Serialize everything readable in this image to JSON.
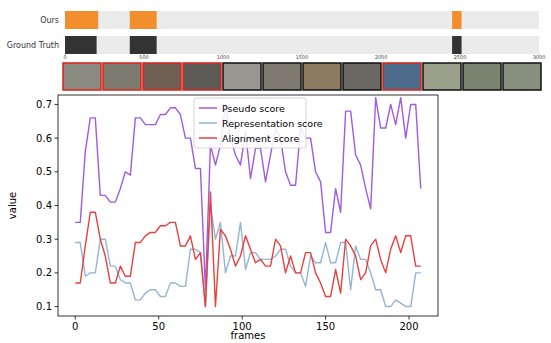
{
  "chart_data": [
    {
      "type": "timeline",
      "categories": [
        "Ours",
        "Ground Truth"
      ],
      "series": [
        {
          "color": "#f28e2b",
          "segments": [
            [
              0,
              210
            ],
            [
              410,
              580
            ],
            [
              2450,
              2510
            ]
          ]
        },
        {
          "color": "#333333",
          "segments": [
            [
              0,
              200
            ],
            [
              410,
              580
            ],
            [
              2450,
              2510
            ]
          ]
        }
      ],
      "xlim": [
        0,
        3000
      ],
      "xticks": [
        0,
        500,
        1000,
        1500,
        2000,
        2500,
        3000
      ]
    },
    {
      "type": "line",
      "xlabel": "frames",
      "ylabel": "value",
      "x": [
        0,
        3,
        6,
        9,
        12,
        15,
        18,
        21,
        24,
        27,
        30,
        33,
        36,
        39,
        42,
        45,
        48,
        51,
        54,
        57,
        60,
        63,
        66,
        69,
        72,
        75,
        78,
        81,
        84,
        87,
        90,
        93,
        96,
        99,
        102,
        105,
        108,
        111,
        114,
        117,
        120,
        123,
        126,
        129,
        132,
        135,
        138,
        141,
        144,
        147,
        150,
        153,
        156,
        159,
        162,
        165,
        168,
        171,
        174,
        177,
        180,
        183,
        186,
        189,
        192,
        195,
        198,
        201,
        204,
        207
      ],
      "series": [
        {
          "name": "Pseudo score",
          "color": "#a05be0",
          "values": [
            0.35,
            0.35,
            0.56,
            0.66,
            0.66,
            0.43,
            0.43,
            0.41,
            0.41,
            0.45,
            0.5,
            0.49,
            0.66,
            0.66,
            0.64,
            0.64,
            0.64,
            0.67,
            0.67,
            0.69,
            0.69,
            0.67,
            0.6,
            0.6,
            0.51,
            0.51,
            0.15,
            0.58,
            0.52,
            0.58,
            0.7,
            0.6,
            0.55,
            0.52,
            0.62,
            0.48,
            0.57,
            0.57,
            0.47,
            0.55,
            0.63,
            0.6,
            0.5,
            0.46,
            0.46,
            0.63,
            0.6,
            0.6,
            0.5,
            0.47,
            0.32,
            0.32,
            0.45,
            0.38,
            0.68,
            0.68,
            0.55,
            0.52,
            0.45,
            0.39,
            0.72,
            0.63,
            0.63,
            0.7,
            0.64,
            0.72,
            0.6,
            0.7,
            0.7,
            0.45
          ]
        },
        {
          "name": "Representation score",
          "color": "#94b4d8",
          "values": [
            0.29,
            0.29,
            0.19,
            0.2,
            0.2,
            0.3,
            0.3,
            0.22,
            0.22,
            0.18,
            0.17,
            0.17,
            0.12,
            0.12,
            0.14,
            0.15,
            0.15,
            0.13,
            0.13,
            0.17,
            0.17,
            0.16,
            0.16,
            0.27,
            0.27,
            0.26,
            0.1,
            0.4,
            0.3,
            0.35,
            0.2,
            0.25,
            0.25,
            0.35,
            0.21,
            0.26,
            0.26,
            0.24,
            0.24,
            0.24,
            0.25,
            0.27,
            0.27,
            0.22,
            0.2,
            0.2,
            0.16,
            0.25,
            0.23,
            0.23,
            0.29,
            0.23,
            0.23,
            0.29,
            0.29,
            0.15,
            0.28,
            0.24,
            0.24,
            0.2,
            0.15,
            0.15,
            0.1,
            0.1,
            0.12,
            0.11,
            0.1,
            0.1,
            0.2,
            0.2
          ]
        },
        {
          "name": "Alignment score",
          "color": "#e8413c",
          "values": [
            0.17,
            0.17,
            0.28,
            0.38,
            0.38,
            0.3,
            0.25,
            0.17,
            0.17,
            0.22,
            0.19,
            0.19,
            0.29,
            0.29,
            0.31,
            0.32,
            0.32,
            0.34,
            0.34,
            0.35,
            0.35,
            0.28,
            0.28,
            0.31,
            0.24,
            0.26,
            0.1,
            0.44,
            0.1,
            0.33,
            0.31,
            0.27,
            0.22,
            0.25,
            0.31,
            0.27,
            0.23,
            0.24,
            0.22,
            0.22,
            0.3,
            0.28,
            0.2,
            0.25,
            0.2,
            0.2,
            0.26,
            0.26,
            0.2,
            0.17,
            0.13,
            0.13,
            0.21,
            0.14,
            0.3,
            0.28,
            0.25,
            0.18,
            0.2,
            0.28,
            0.3,
            0.24,
            0.2,
            0.27,
            0.31,
            0.26,
            0.31,
            0.31,
            0.22,
            0.22
          ]
        }
      ],
      "xlim": [
        -10.35,
        217.35
      ],
      "xticks": [
        0,
        50,
        100,
        150,
        200
      ],
      "ylim": [
        0.072,
        0.728
      ],
      "yticks": [
        0.1,
        0.2,
        0.3,
        0.4,
        0.5,
        0.6,
        0.7
      ],
      "legend": "upper center"
    }
  ],
  "frame_strip": {
    "colors": [
      "#e0201a",
      "#e0201a",
      "#e0201a",
      "#e0201a",
      "#111111",
      "#111111",
      "#111111",
      "#111111",
      "#e0201a",
      "#111111",
      "#111111",
      "#111111"
    ]
  }
}
